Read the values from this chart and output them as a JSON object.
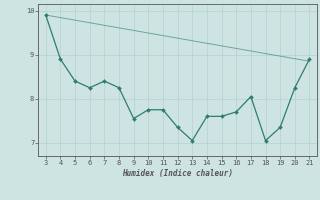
{
  "xlabel": "Humidex (Indice chaleur)",
  "x_data": [
    3,
    4,
    5,
    6,
    7,
    8,
    9,
    10,
    11,
    12,
    13,
    14,
    15,
    16,
    17,
    18,
    19,
    20,
    21
  ],
  "y_data": [
    9.9,
    8.9,
    8.4,
    8.25,
    8.4,
    8.25,
    7.55,
    7.75,
    7.75,
    7.35,
    7.05,
    7.6,
    7.6,
    7.7,
    8.05,
    7.05,
    7.35,
    8.25,
    8.9
  ],
  "trend_x": [
    3,
    21
  ],
  "trend_y": [
    9.9,
    8.85
  ],
  "line_color": "#2e7d6e",
  "bg_color": "#cde4e2",
  "grid_color": "#b8d4d2",
  "axis_color": "#555555",
  "xlim": [
    2.5,
    21.5
  ],
  "ylim": [
    6.7,
    10.15
  ],
  "yticks": [
    7,
    8,
    9,
    10
  ],
  "xticks": [
    3,
    4,
    5,
    6,
    7,
    8,
    9,
    10,
    11,
    12,
    13,
    14,
    15,
    16,
    17,
    18,
    19,
    20,
    21
  ],
  "tick_fontsize": 5.0,
  "xlabel_fontsize": 5.5
}
